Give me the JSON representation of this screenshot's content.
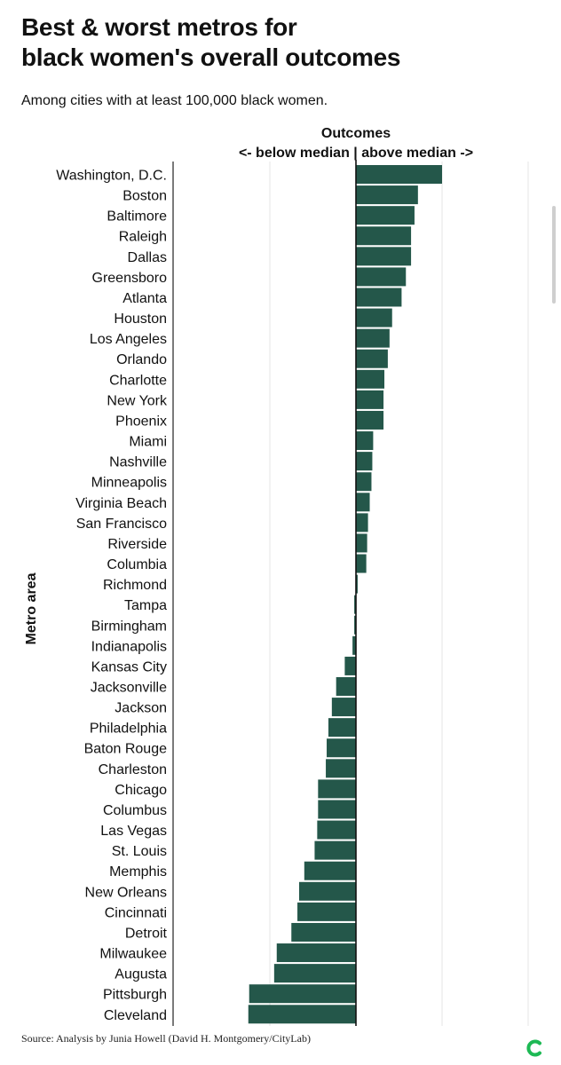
{
  "header": {
    "title_line1": "Best & worst metros for",
    "title_line2": "black women's overall outcomes",
    "subtitle": "Among cities with at least 100,000 black women."
  },
  "footer": {
    "source": "Source: Analysis by Junia Howell (David H. Montgomery/CityLab)",
    "logo_icon": "citylab-logo-icon",
    "logo_color": "#1db954"
  },
  "chart_data": {
    "type": "bar",
    "orientation": "horizontal",
    "title": "Outcomes",
    "subtitle": "<- below median | above median ->",
    "xlabel": "Outcomes",
    "ylabel": "Metro area",
    "bar_color": "#24574a",
    "grid": true,
    "xlim": [
      -2,
      2
    ],
    "gridlines": [
      -1,
      1
    ],
    "categories": [
      "Washington, D.C.",
      "Boston",
      "Baltimore",
      "Raleigh",
      "Dallas",
      "Greensboro",
      "Atlanta",
      "Houston",
      "Los Angeles",
      "Orlando",
      "Charlotte",
      "New York",
      "Phoenix",
      "Miami",
      "Nashville",
      "Minneapolis",
      "Virginia Beach",
      "San Francisco",
      "Riverside",
      "Columbia",
      "Richmond",
      "Tampa",
      "Birmingham",
      "Indianapolis",
      "Kansas City",
      "Jacksonville",
      "Jackson",
      "Philadelphia",
      "Baton Rouge",
      "Charleston",
      "Chicago",
      "Columbus",
      "Las Vegas",
      "St. Louis",
      "Memphis",
      "New Orleans",
      "Cincinnati",
      "Detroit",
      "Milwaukee",
      "Augusta",
      "Pittsburgh",
      "Cleveland"
    ],
    "values": [
      1.0,
      0.72,
      0.68,
      0.64,
      0.64,
      0.58,
      0.53,
      0.42,
      0.39,
      0.37,
      0.33,
      0.32,
      0.32,
      0.2,
      0.19,
      0.18,
      0.16,
      0.14,
      0.13,
      0.12,
      0.02,
      -0.02,
      -0.02,
      -0.04,
      -0.13,
      -0.23,
      -0.28,
      -0.32,
      -0.34,
      -0.35,
      -0.44,
      -0.44,
      -0.45,
      -0.48,
      -0.6,
      -0.66,
      -0.68,
      -0.75,
      -0.92,
      -0.95,
      -1.24,
      -1.25
    ]
  }
}
